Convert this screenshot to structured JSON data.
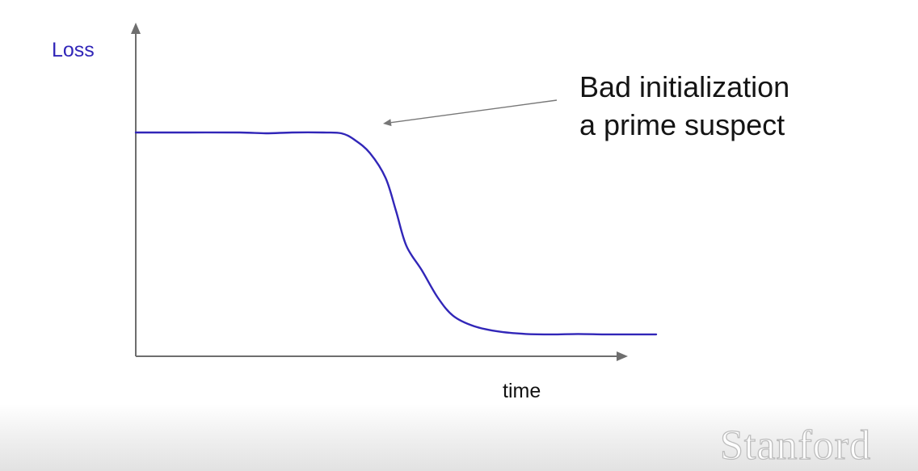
{
  "chart_data": {
    "type": "line",
    "title": "",
    "xlabel": "time",
    "ylabel": "Loss",
    "grid": false,
    "x_ticks": [],
    "y_ticks": [],
    "xlim": [
      0,
      100
    ],
    "ylim": [
      0,
      100
    ],
    "series": [
      {
        "color": "#3126b8",
        "points": [
          [
            0,
            100
          ],
          [
            10,
            100
          ],
          [
            20,
            100
          ],
          [
            25,
            99.6
          ],
          [
            30,
            100
          ],
          [
            36,
            100
          ],
          [
            39.5,
            99.6
          ],
          [
            42,
            96.5
          ],
          [
            45,
            90
          ],
          [
            48,
            78
          ],
          [
            50,
            62
          ],
          [
            52,
            45
          ],
          [
            55,
            33
          ],
          [
            58,
            20
          ],
          [
            61,
            11
          ],
          [
            65,
            6
          ],
          [
            70,
            3.3
          ],
          [
            75,
            2.2
          ],
          [
            80,
            2
          ],
          [
            85,
            2.2
          ],
          [
            90,
            2
          ],
          [
            95,
            2
          ],
          [
            100,
            2
          ]
        ]
      }
    ],
    "annotations": [
      {
        "lines": [
          "Bad initialization",
          "a prime suspect"
        ],
        "arrow": true
      }
    ]
  },
  "colors": {
    "curve": "#3126b8",
    "axis": "#6e6e6e",
    "ylabel": "#3126b8",
    "text": "#141414"
  },
  "watermark": {
    "text": "Stanford"
  }
}
